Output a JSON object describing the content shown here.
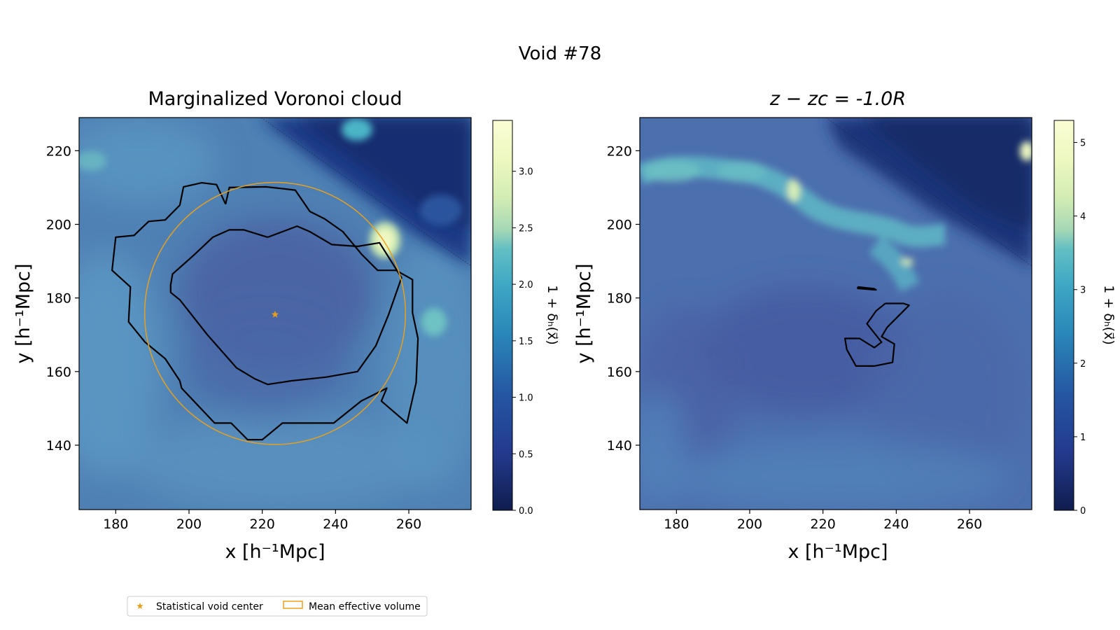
{
  "figure": {
    "suptitle": "Void #78"
  },
  "chart_data": [
    {
      "type": "heatmap",
      "title": "Marginalized Voronoi cloud",
      "xlabel": "x [h⁻¹Mpc]",
      "ylabel": "y [h⁻¹Mpc]",
      "xlim": [
        170,
        277
      ],
      "ylim": [
        122.5,
        229
      ],
      "xticks": [
        180,
        200,
        220,
        240,
        260
      ],
      "yticks": [
        140,
        160,
        180,
        200,
        220
      ],
      "colorbar": {
        "label": "1 + δₕ(x⃗)",
        "range": [
          0.0,
          3.45
        ],
        "ticks": [
          "0.0",
          "0.5",
          "1.0",
          "1.5",
          "2.0",
          "2.5",
          "3.0"
        ],
        "tick_values": [
          0.0,
          0.5,
          1.0,
          1.5,
          2.0,
          2.5,
          3.0
        ],
        "colormap": "YlGnBu_r"
      },
      "markers": [
        {
          "name": "Statistical void center",
          "x": 223.5,
          "y": 175.5,
          "symbol": "star",
          "color": "#e6a020"
        }
      ],
      "circles": [
        {
          "name": "Mean effective volume",
          "center": [
            223.5,
            175.8
          ],
          "radius": 35.6,
          "color": "#e6a020"
        }
      ],
      "contours": [
        {
          "name": "outer",
          "points": [
            [
              210,
              205.5
            ],
            [
              207.5,
              210.8
            ],
            [
              203.5,
              211.3
            ],
            [
              198.5,
              210.2
            ],
            [
              197.5,
              205.2
            ],
            [
              193.5,
              201.2
            ],
            [
              189,
              200.8
            ],
            [
              185,
              197
            ],
            [
              180,
              196.5
            ],
            [
              179,
              187.5
            ],
            [
              184,
              183
            ],
            [
              183.5,
              173.5
            ],
            [
              188,
              168
            ],
            [
              193.5,
              163.5
            ],
            [
              197.5,
              157.5
            ],
            [
              198,
              155.5
            ],
            [
              207,
              146
            ],
            [
              211.5,
              146
            ],
            [
              216,
              141.5
            ],
            [
              220,
              141.5
            ],
            [
              225.5,
              146
            ],
            [
              239.5,
              146
            ],
            [
              247,
              152
            ],
            [
              254,
              155.5
            ],
            [
              252.5,
              152
            ],
            [
              256,
              149
            ],
            [
              259.5,
              146
            ],
            [
              262,
              157
            ],
            [
              262.5,
              169
            ],
            [
              261,
              176
            ],
            [
              261,
              185
            ],
            [
              256.5,
              187.5
            ],
            [
              251.5,
              187.5
            ],
            [
              247,
              192
            ],
            [
              242,
              198
            ],
            [
              237,
              201.5
            ],
            [
              233,
              203.5
            ],
            [
              229,
              209.3
            ],
            [
              221,
              210.2
            ],
            [
              211,
              210
            ],
            [
              210,
              205.5
            ]
          ]
        },
        {
          "name": "inner",
          "points": [
            [
              221.5,
              196.5
            ],
            [
              215,
              198.5
            ],
            [
              211,
              198.5
            ],
            [
              206.5,
              196.5
            ],
            [
              201.5,
              191.8
            ],
            [
              195.5,
              186.5
            ],
            [
              195,
              183.5
            ],
            [
              195,
              181.5
            ],
            [
              197.5,
              179.5
            ],
            [
              205,
              170
            ],
            [
              213,
              161
            ],
            [
              218,
              158
            ],
            [
              221.5,
              156.5
            ],
            [
              228,
              157.5
            ],
            [
              237.5,
              158.5
            ],
            [
              246,
              160
            ],
            [
              251,
              167
            ],
            [
              254.5,
              175.5
            ],
            [
              258,
              185.5
            ],
            [
              252,
              195
            ],
            [
              246,
              194
            ],
            [
              239,
              194.5
            ],
            [
              233,
              198
            ],
            [
              229.5,
              199.5
            ],
            [
              221.5,
              196.5
            ]
          ]
        }
      ]
    },
    {
      "type": "heatmap",
      "title": "z − zᴄ = -1.0R",
      "xlabel": "x [h⁻¹Mpc]",
      "ylabel": "y [h⁻¹Mpc]",
      "xlim": [
        170,
        277
      ],
      "ylim": [
        122.5,
        229
      ],
      "xticks": [
        180,
        200,
        220,
        240,
        260
      ],
      "yticks": [
        140,
        160,
        180,
        200,
        220
      ],
      "colorbar": {
        "label": "1 + δₕ(x⃗)",
        "range": [
          0,
          5.3
        ],
        "ticks": [
          "0",
          "1",
          "2",
          "3",
          "4",
          "5"
        ],
        "tick_values": [
          0,
          1,
          2,
          3,
          4,
          5
        ],
        "colormap": "YlGnBu_r"
      },
      "contours": [
        {
          "name": "small-bar",
          "points": [
            [
              229.5,
              183
            ],
            [
              234,
              182.5
            ],
            [
              234.5,
              182.2
            ],
            [
              229.5,
              182.6
            ],
            [
              229.5,
              183
            ]
          ]
        },
        {
          "name": "hook",
          "points": [
            [
              237,
              178.5
            ],
            [
              242,
              178.5
            ],
            [
              243.5,
              178
            ],
            [
              237.5,
              172
            ],
            [
              236,
              169.5
            ],
            [
              239.5,
              167.5
            ],
            [
              239,
              162.5
            ],
            [
              234,
              161.5
            ],
            [
              229,
              161.5
            ],
            [
              226.5,
              166
            ],
            [
              226,
              169
            ],
            [
              230,
              169
            ],
            [
              234,
              166.5
            ],
            [
              236,
              168
            ],
            [
              232,
              173
            ],
            [
              234.5,
              176.5
            ],
            [
              237,
              178.5
            ]
          ]
        }
      ]
    }
  ],
  "legend": {
    "items": [
      {
        "label": "Statistical void center",
        "symbol": "star",
        "color": "#e6a020"
      },
      {
        "label": "Mean effective volume",
        "symbol": "rect-outline",
        "color": "#e6a020"
      }
    ]
  }
}
